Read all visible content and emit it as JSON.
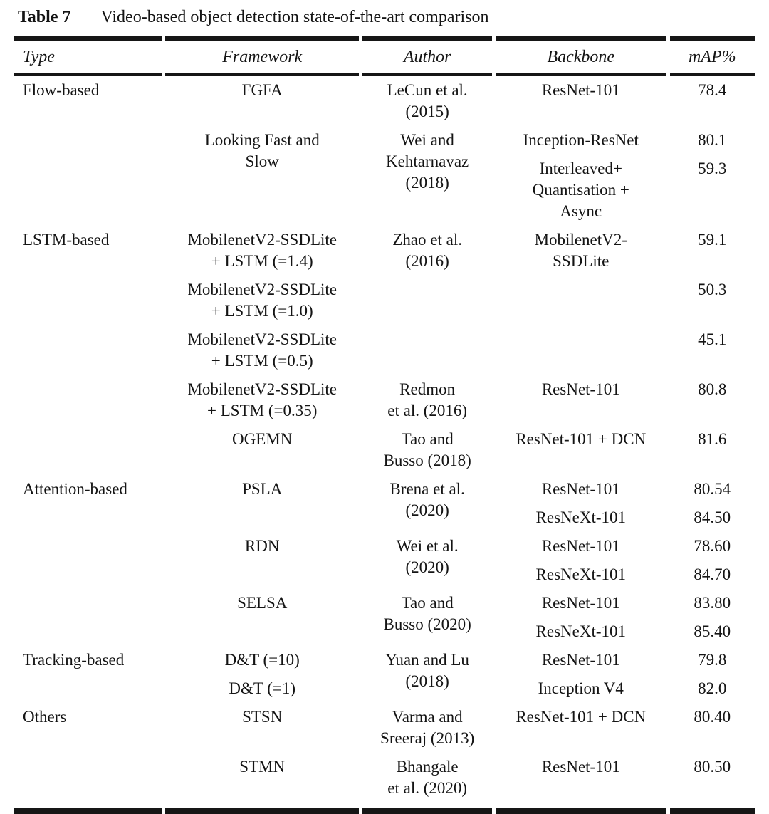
{
  "title": {
    "label": "Table 7",
    "caption": "Video-based object detection state-of-the-art comparison"
  },
  "colors": {
    "text": "#141414",
    "rule": "#161616",
    "background": "#ffffff"
  },
  "table": {
    "columns": [
      "Type",
      "Framework",
      "Author",
      "Backbone",
      "mAP%"
    ],
    "column_keys": [
      "type",
      "framework",
      "author",
      "backbone",
      "map"
    ],
    "rows": [
      [
        {
          "t": "Flow-based"
        },
        {
          "t": "FGFA"
        },
        {
          "t": "LeCun et al.\n(2015)"
        },
        {
          "t": "ResNet-101"
        },
        {
          "t": "78.4"
        }
      ],
      [
        {
          "t": ""
        },
        {
          "t": "Looking Fast and\nSlow",
          "rs": 2
        },
        {
          "t": "Wei and\nKehtarnavaz\n(2018)",
          "rs": 2
        },
        {
          "t": "Inception-ResNet"
        },
        {
          "t": "80.1"
        }
      ],
      [
        {
          "t": ""
        },
        null,
        null,
        {
          "t": "Interleaved+\nQuantisation +\nAsync"
        },
        {
          "t": "59.3"
        }
      ],
      [
        {
          "t": "LSTM-based"
        },
        {
          "t": "MobilenetV2-SSDLite\n+ LSTM (=1.4)"
        },
        {
          "t": "Zhao et al.\n(2016)"
        },
        {
          "t": "MobilenetV2-\nSSDLite"
        },
        {
          "t": "59.1"
        }
      ],
      [
        {
          "t": ""
        },
        {
          "t": "MobilenetV2-SSDLite\n+ LSTM (=1.0)"
        },
        {
          "t": ""
        },
        {
          "t": ""
        },
        {
          "t": "50.3"
        }
      ],
      [
        {
          "t": ""
        },
        {
          "t": "MobilenetV2-SSDLite\n+ LSTM (=0.5)"
        },
        {
          "t": ""
        },
        {
          "t": ""
        },
        {
          "t": "45.1"
        }
      ],
      [
        {
          "t": ""
        },
        {
          "t": "MobilenetV2-SSDLite\n+ LSTM (=0.35)"
        },
        {
          "t": "Redmon\net al. (2016)"
        },
        {
          "t": "ResNet-101"
        },
        {
          "t": "80.8"
        }
      ],
      [
        {
          "t": ""
        },
        {
          "t": "OGEMN"
        },
        {
          "t": "Tao and\nBusso (2018)"
        },
        {
          "t": "ResNet-101 + DCN"
        },
        {
          "t": "81.6"
        }
      ],
      [
        {
          "t": "Attention-based"
        },
        {
          "t": "PSLA",
          "rs": 2
        },
        {
          "t": "Brena et al.\n(2020)",
          "rs": 2
        },
        {
          "t": "ResNet-101"
        },
        {
          "t": "80.54"
        }
      ],
      [
        {
          "t": ""
        },
        null,
        null,
        {
          "t": "ResNeXt-101"
        },
        {
          "t": "84.50"
        }
      ],
      [
        {
          "t": ""
        },
        {
          "t": "RDN",
          "rs": 2
        },
        {
          "t": "Wei et al.\n(2020)",
          "rs": 2
        },
        {
          "t": "ResNet-101"
        },
        {
          "t": "78.60"
        }
      ],
      [
        {
          "t": ""
        },
        null,
        null,
        {
          "t": "ResNeXt-101"
        },
        {
          "t": "84.70"
        }
      ],
      [
        {
          "t": ""
        },
        {
          "t": "SELSA",
          "rs": 2
        },
        {
          "t": "Tao and\nBusso (2020)",
          "rs": 2
        },
        {
          "t": "ResNet-101"
        },
        {
          "t": "83.80"
        }
      ],
      [
        {
          "t": ""
        },
        null,
        null,
        {
          "t": "ResNeXt-101"
        },
        {
          "t": "85.40"
        }
      ],
      [
        {
          "t": "Tracking-based"
        },
        {
          "t": "D&T (=10)"
        },
        {
          "t": "Yuan and Lu\n(2018)",
          "rs": 2
        },
        {
          "t": "ResNet-101"
        },
        {
          "t": "79.8"
        }
      ],
      [
        {
          "t": ""
        },
        {
          "t": "D&T (=1)"
        },
        null,
        {
          "t": "Inception V4"
        },
        {
          "t": "82.0"
        }
      ],
      [
        {
          "t": "Others"
        },
        {
          "t": "STSN"
        },
        {
          "t": "Varma and\nSreeraj (2013)"
        },
        {
          "t": "ResNet-101 + DCN"
        },
        {
          "t": "80.40"
        }
      ],
      [
        {
          "t": ""
        },
        {
          "t": "STMN"
        },
        {
          "t": "Bhangale\net al. (2020)"
        },
        {
          "t": "ResNet-101"
        },
        {
          "t": "80.50"
        }
      ]
    ]
  }
}
